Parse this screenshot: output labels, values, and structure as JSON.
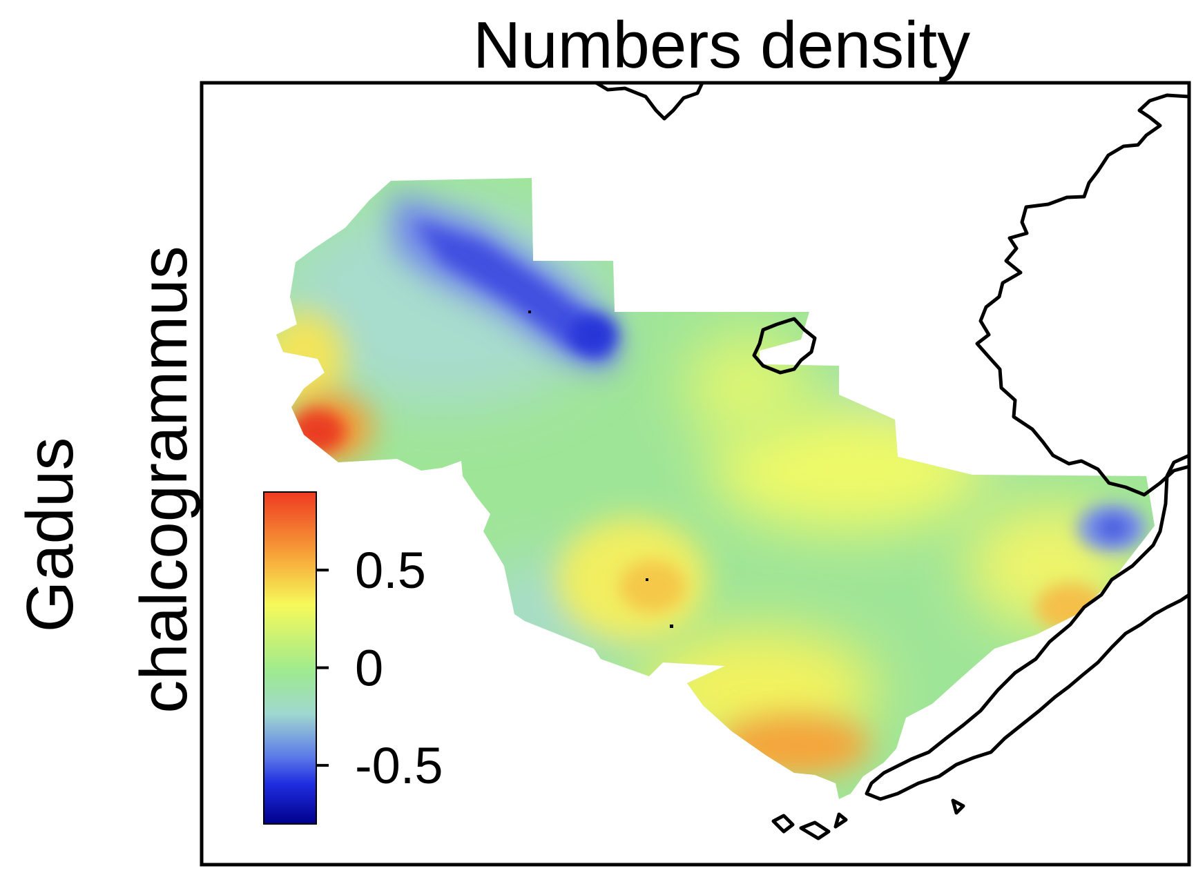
{
  "title": "Numbers density",
  "species_label": {
    "line1": "Gadus",
    "line2": "chalcogrammus"
  },
  "legend": {
    "ticks": [
      {
        "value": 0.5,
        "label": "0.5"
      },
      {
        "value": 0,
        "label": "0"
      },
      {
        "value": -0.5,
        "label": "-0.5"
      }
    ],
    "min": -0.8,
    "max": 0.9,
    "colors": [
      "#00008b",
      "#1f2de0",
      "#5a78e8",
      "#9fd7d0",
      "#9eea8e",
      "#f6f95a",
      "#f7a93a",
      "#ef3a22"
    ]
  },
  "map": {
    "hotspots": [
      {
        "name": "western-edge-high",
        "value": 0.85
      },
      {
        "name": "north-trough-low",
        "value": -0.65
      },
      {
        "name": "central-south-high",
        "value": 0.45
      },
      {
        "name": "southern-edge-high",
        "value": 0.6
      },
      {
        "name": "east-coast-low",
        "value": -0.4
      },
      {
        "name": "east-coast-high",
        "value": 0.45
      }
    ]
  }
}
